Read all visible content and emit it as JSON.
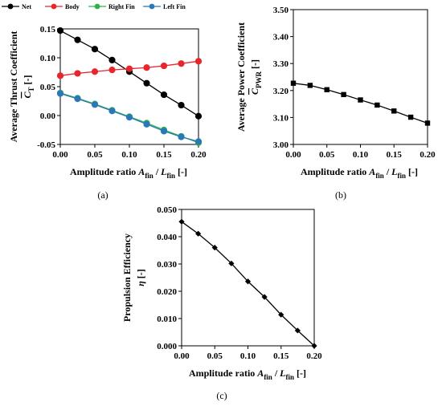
{
  "chart_data": [
    {
      "type": "line",
      "panel": "(a)",
      "xlabel": "Amplitude ratio A_fin / L_fin [-]",
      "ylabel": "Average Thrust Coefficient",
      "ylabel_symbol": "C_T [-]",
      "xlim": [
        0,
        0.2
      ],
      "ylim": [
        -0.05,
        0.15
      ],
      "x": [
        0,
        0.025,
        0.05,
        0.075,
        0.1,
        0.125,
        0.15,
        0.175,
        0.2
      ],
      "x_ticks": [
        "0.00",
        "0.05",
        "0.10",
        "0.15",
        "0.20"
      ],
      "y_ticks": [
        "-0.05",
        "0.00",
        "0.05",
        "0.10",
        "0.15"
      ],
      "legend_position": "top",
      "series": [
        {
          "name": "Net",
          "color": "#000000",
          "values": [
            0.147,
            0.131,
            0.115,
            0.096,
            0.076,
            0.056,
            0.036,
            0.018,
            -0.001
          ]
        },
        {
          "name": "Body",
          "color": "#e8262b",
          "values": [
            0.069,
            0.073,
            0.076,
            0.079,
            0.081,
            0.083,
            0.086,
            0.09,
            0.094
          ]
        },
        {
          "name": "Right Fin",
          "color": "#2bb34a",
          "values": [
            0.039,
            0.03,
            0.02,
            0.009,
            -0.002,
            -0.013,
            -0.025,
            -0.036,
            -0.047
          ]
        },
        {
          "name": "Left Fin",
          "color": "#2a78b8",
          "values": [
            0.038,
            0.029,
            0.019,
            0.008,
            -0.003,
            -0.015,
            -0.027,
            -0.037,
            -0.045
          ]
        }
      ]
    },
    {
      "type": "line",
      "panel": "(b)",
      "xlabel": "Amplitude ratio A_fin / L_fin [-]",
      "ylabel": "Average Power Coefficient",
      "ylabel_symbol": "C_PWR [-]",
      "xlim": [
        0,
        0.2
      ],
      "ylim": [
        3.0,
        3.5
      ],
      "x": [
        0,
        0.025,
        0.05,
        0.075,
        0.1,
        0.125,
        0.15,
        0.175,
        0.2
      ],
      "x_ticks": [
        "0.00",
        "0.05",
        "0.10",
        "0.15",
        "0.20"
      ],
      "y_ticks": [
        "3.00",
        "3.10",
        "3.20",
        "3.30",
        "3.40",
        "3.50"
      ],
      "series": [
        {
          "color": "#000000",
          "values": [
            3.227,
            3.219,
            3.203,
            3.185,
            3.165,
            3.146,
            3.124,
            3.101,
            3.079
          ]
        }
      ]
    },
    {
      "type": "line",
      "panel": "(c)",
      "xlabel": "Amplitude ratio A_fin / L_fin [-]",
      "ylabel": "Propulsion Efficiency",
      "ylabel_symbol": "η [-]",
      "xlim": [
        0,
        0.2
      ],
      "ylim": [
        0,
        0.05
      ],
      "x": [
        0,
        0.025,
        0.05,
        0.075,
        0.1,
        0.125,
        0.15,
        0.175,
        0.2
      ],
      "x_ticks": [
        "0.00",
        "0.05",
        "0.10",
        "0.15",
        "0.20"
      ],
      "y_ticks": [
        "0.000",
        "0.010",
        "0.020",
        "0.030",
        "0.040",
        "0.050"
      ],
      "series": [
        {
          "color": "#000000",
          "values": [
            0.0455,
            0.0411,
            0.036,
            0.0302,
            0.0236,
            0.0179,
            0.0114,
            0.0056,
            0.0
          ]
        }
      ]
    }
  ]
}
